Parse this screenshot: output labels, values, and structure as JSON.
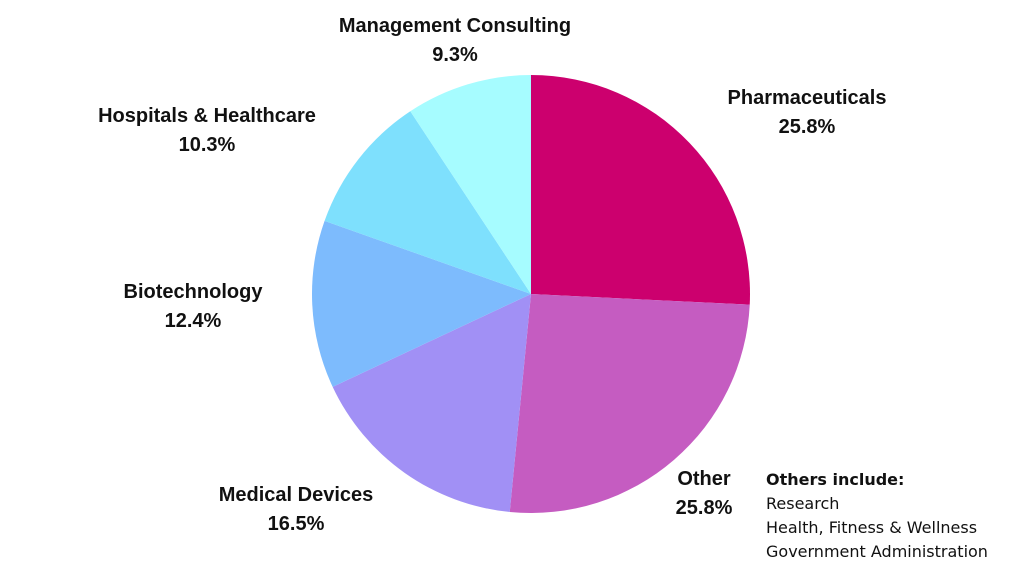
{
  "chart_data": {
    "type": "pie",
    "title": "",
    "slices": [
      {
        "label": "Pharmaceuticals",
        "value": 25.8,
        "value_label": "25.8%",
        "color": "#cc006e"
      },
      {
        "label": "Other",
        "value": 25.8,
        "value_label": "25.8%",
        "color": "#c55cc1"
      },
      {
        "label": "Medical Devices",
        "value": 16.5,
        "value_label": "16.5%",
        "color": "#a190f5"
      },
      {
        "label": "Biotechnology",
        "value": 12.4,
        "value_label": "12.4%",
        "color": "#7dbbfd"
      },
      {
        "label": "Hospitals & Healthcare",
        "value": 10.3,
        "value_label": "10.3%",
        "color": "#7ee0fd"
      },
      {
        "label": "Management Consulting",
        "value": 9.3,
        "value_label": "9.3%",
        "color": "#a6fcff"
      }
    ]
  },
  "note": {
    "title": "Others include:",
    "items": [
      "Research",
      "Health, Fitness & Wellness",
      "Government Administration"
    ]
  }
}
